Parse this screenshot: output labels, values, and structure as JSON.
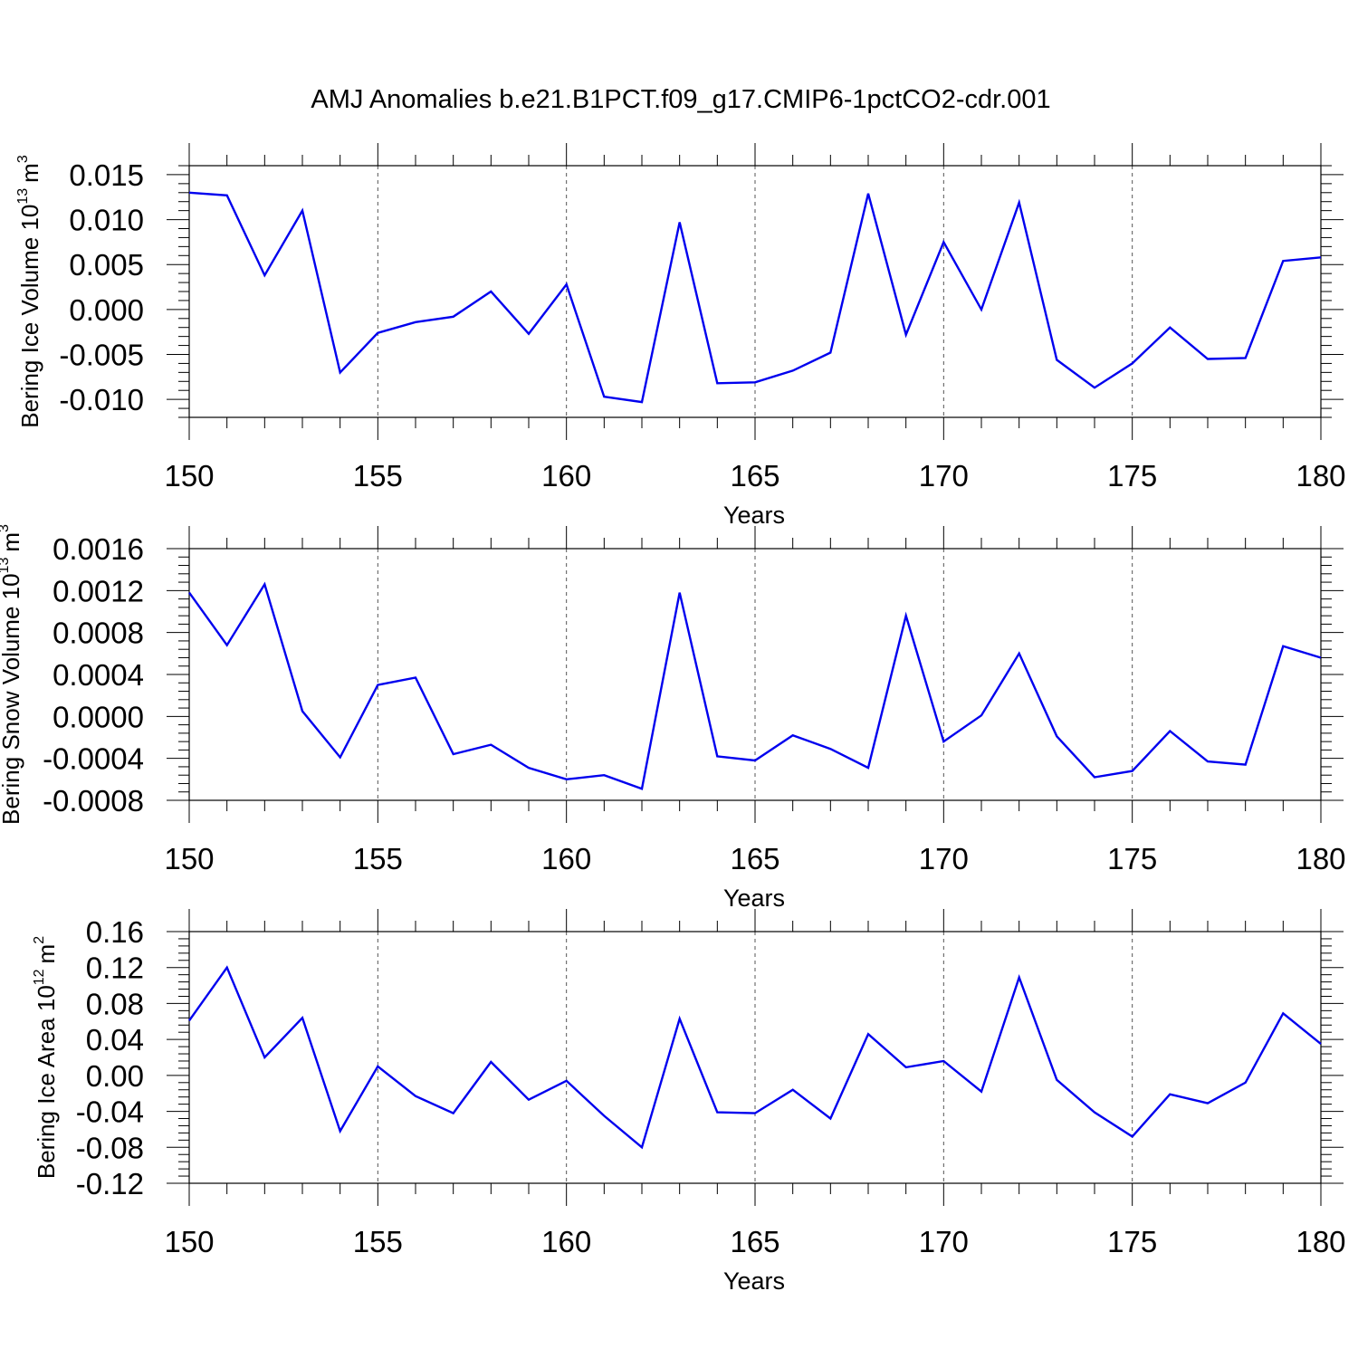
{
  "title": "AMJ Anomalies b.e21.B1PCT.f09_g17.CMIP6-1pctCO2-cdr.001",
  "colors": {
    "series": "#0000ee",
    "axes": "#000000",
    "grid": "#555555"
  },
  "chart_data": [
    {
      "type": "line",
      "ylabel_text": "Bering Ice Volume 10",
      "ylabel_sup": "13",
      "ylabel_unit": "m",
      "ylabel_unit_sup": "3",
      "xlabel": "Years",
      "xlim": [
        150,
        180
      ],
      "ylim": [
        -0.012,
        0.016
      ],
      "x_ticks": [
        "150",
        "155",
        "160",
        "165",
        "170",
        "175",
        "180"
      ],
      "y_ticks": [
        -0.01,
        -0.005,
        0.0,
        0.005,
        0.01,
        0.015
      ],
      "y_tick_labels": [
        "-0.010",
        "-0.005",
        "0.000",
        "0.005",
        "0.010",
        "0.015"
      ],
      "x": [
        150,
        151,
        152,
        153,
        154,
        155,
        156,
        157,
        158,
        159,
        160,
        161,
        162,
        163,
        164,
        165,
        166,
        167,
        168,
        169,
        170,
        171,
        172,
        173,
        174,
        175,
        176,
        177,
        178,
        179,
        180
      ],
      "values": [
        0.013,
        0.0127,
        0.0038,
        0.011,
        -0.007,
        -0.0026,
        -0.0014,
        -0.0008,
        0.002,
        -0.0027,
        0.0028,
        -0.0097,
        -0.0103,
        0.0097,
        -0.0082,
        -0.0081,
        -0.0068,
        -0.0048,
        0.0129,
        -0.0028,
        0.0075,
        0.0,
        0.0119,
        -0.0056,
        -0.0087,
        -0.006,
        -0.002,
        -0.0055,
        -0.0054,
        0.0054,
        0.0058
      ]
    },
    {
      "type": "line",
      "ylabel_text": "Bering Snow Volume 10",
      "ylabel_sup": "13",
      "ylabel_unit": "m",
      "ylabel_unit_sup": "3",
      "xlabel": "Years",
      "xlim": [
        150,
        180
      ],
      "ylim": [
        -0.0008,
        0.0016
      ],
      "x_ticks": [
        "150",
        "155",
        "160",
        "165",
        "170",
        "175",
        "180"
      ],
      "y_ticks": [
        -0.0008,
        -0.0004,
        0.0,
        0.0004,
        0.0008,
        0.0012,
        0.0016
      ],
      "y_tick_labels": [
        "-0.0008",
        "-0.0004",
        "0.0000",
        "0.0004",
        "0.0008",
        "0.0012",
        "0.0016"
      ],
      "x": [
        150,
        151,
        152,
        153,
        154,
        155,
        156,
        157,
        158,
        159,
        160,
        161,
        162,
        163,
        164,
        165,
        166,
        167,
        168,
        169,
        170,
        171,
        172,
        173,
        174,
        175,
        176,
        177,
        178,
        179,
        180
      ],
      "values": [
        0.00118,
        0.00068,
        0.00126,
        5e-05,
        -0.00039,
        0.0003,
        0.00037,
        -0.00036,
        -0.00027,
        -0.00049,
        -0.0006,
        -0.00056,
        -0.00069,
        0.00118,
        -0.00038,
        -0.00042,
        -0.00018,
        -0.00031,
        -0.00049,
        0.00096,
        -0.00024,
        1e-05,
        0.0006,
        -0.00019,
        -0.00058,
        -0.00052,
        -0.00014,
        -0.00043,
        -0.00046,
        0.00067,
        0.00056
      ]
    },
    {
      "type": "line",
      "ylabel_text": "Bering Ice Area 10",
      "ylabel_sup": "12",
      "ylabel_unit": "m",
      "ylabel_unit_sup": "2",
      "xlabel": "Years",
      "xlim": [
        150,
        180
      ],
      "ylim": [
        -0.12,
        0.16
      ],
      "x_ticks": [
        "150",
        "155",
        "160",
        "165",
        "170",
        "175",
        "180"
      ],
      "y_ticks": [
        -0.12,
        -0.08,
        -0.04,
        0.0,
        0.04,
        0.08,
        0.12,
        0.16
      ],
      "y_tick_labels": [
        "-0.12",
        "-0.08",
        "-0.04",
        "0.00",
        "0.04",
        "0.08",
        "0.12",
        "0.16"
      ],
      "x": [
        150,
        151,
        152,
        153,
        154,
        155,
        156,
        157,
        158,
        159,
        160,
        161,
        162,
        163,
        164,
        165,
        166,
        167,
        168,
        169,
        170,
        171,
        172,
        173,
        174,
        175,
        176,
        177,
        178,
        179,
        180
      ],
      "values": [
        0.061,
        0.12,
        0.02,
        0.064,
        -0.062,
        0.01,
        -0.023,
        -0.042,
        0.015,
        -0.027,
        -0.006,
        -0.045,
        -0.08,
        0.063,
        -0.041,
        -0.042,
        -0.016,
        -0.048,
        0.046,
        0.009,
        0.016,
        -0.018,
        0.109,
        -0.005,
        -0.041,
        -0.068,
        -0.021,
        -0.031,
        -0.008,
        0.069,
        0.035
      ]
    }
  ]
}
